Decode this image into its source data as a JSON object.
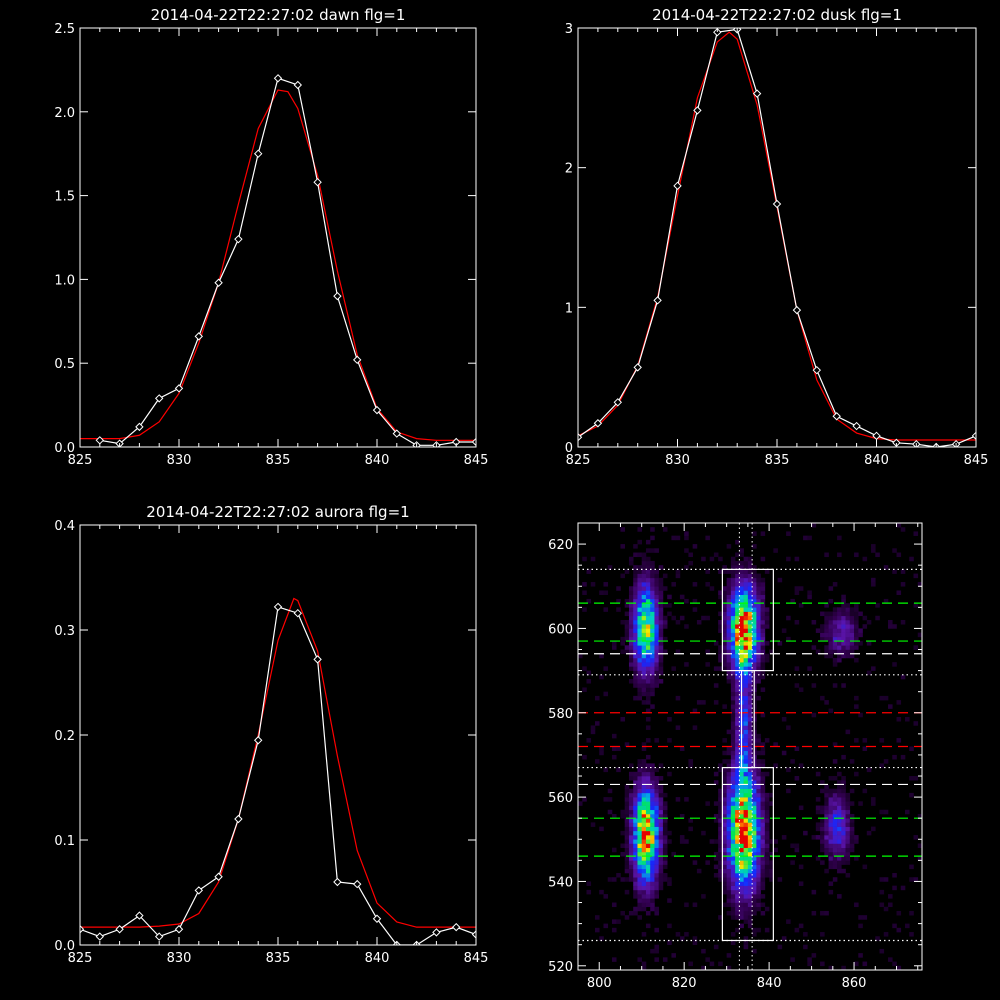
{
  "chart_data": [
    {
      "type": "line",
      "title": "2014-04-22T22:27:02 dawn flg=1",
      "xlim": [
        825,
        845
      ],
      "ylim": [
        0,
        2.5
      ],
      "xticks": [
        825,
        830,
        835,
        840,
        845
      ],
      "yticks": [
        0.0,
        0.5,
        1.0,
        1.5,
        2.0,
        2.5
      ],
      "ytick_labels": [
        "0.0",
        "0.5",
        "1.0",
        "1.5",
        "2.0",
        "2.5"
      ],
      "colors": {
        "data": "#ffffff",
        "fit": "#ff0000"
      },
      "series": [
        {
          "x": [
            826,
            827,
            828,
            829,
            830,
            831,
            832,
            833,
            834,
            835,
            836,
            837,
            838,
            839,
            840,
            841,
            842,
            843,
            844,
            845
          ],
          "y": [
            0.04,
            0.02,
            0.12,
            0.29,
            0.35,
            0.66,
            0.98,
            1.24,
            1.75,
            2.2,
            2.16,
            1.58,
            0.9,
            0.52,
            0.22,
            0.08,
            0.01,
            0.01,
            0.03,
            0.03
          ],
          "markers": "diamond"
        },
        {
          "x": [
            825,
            826,
            827,
            828,
            829,
            830,
            831,
            832,
            833,
            834,
            835,
            835.5,
            836,
            837,
            838,
            839,
            840,
            841,
            842,
            843,
            844,
            845
          ],
          "y": [
            0.05,
            0.05,
            0.05,
            0.07,
            0.15,
            0.32,
            0.62,
            0.98,
            1.45,
            1.9,
            2.13,
            2.12,
            2.02,
            1.62,
            1.05,
            0.55,
            0.23,
            0.09,
            0.05,
            0.04,
            0.04,
            0.04
          ],
          "markers": "none"
        }
      ]
    },
    {
      "type": "line",
      "title": "2014-04-22T22:27:02 dusk flg=1",
      "xlim": [
        825,
        845
      ],
      "ylim": [
        0,
        3
      ],
      "xticks": [
        825,
        830,
        835,
        840,
        845
      ],
      "yticks": [
        0,
        1,
        2,
        3
      ],
      "ytick_labels": [
        "0",
        "1",
        "2",
        "3"
      ],
      "colors": {
        "data": "#ffffff",
        "fit": "#ff0000"
      },
      "series": [
        {
          "x": [
            825,
            826,
            827,
            828,
            829,
            830,
            831,
            832,
            833,
            834,
            835,
            836,
            837,
            838,
            839,
            840,
            841,
            842,
            843,
            844,
            845
          ],
          "y": [
            0.07,
            0.17,
            0.32,
            0.57,
            1.05,
            1.87,
            2.41,
            2.97,
            2.99,
            2.53,
            1.74,
            0.98,
            0.55,
            0.22,
            0.15,
            0.08,
            0.03,
            0.02,
            0.0,
            0.02,
            0.08
          ],
          "markers": "diamond"
        },
        {
          "x": [
            825,
            826,
            827,
            828,
            829,
            830,
            831,
            832,
            832.6,
            833,
            834,
            835,
            836,
            837,
            838,
            839,
            840,
            841,
            842,
            843,
            844,
            845
          ],
          "y": [
            0.08,
            0.15,
            0.3,
            0.58,
            1.07,
            1.8,
            2.5,
            2.9,
            2.97,
            2.92,
            2.45,
            1.72,
            0.98,
            0.48,
            0.2,
            0.1,
            0.06,
            0.05,
            0.05,
            0.05,
            0.05,
            0.05
          ],
          "markers": "none"
        }
      ]
    },
    {
      "type": "line",
      "title": "2014-04-22T22:27:02 aurora flg=1",
      "xlim": [
        825,
        845
      ],
      "ylim": [
        0,
        0.4
      ],
      "xticks": [
        825,
        830,
        835,
        840,
        845
      ],
      "yticks": [
        0.0,
        0.1,
        0.2,
        0.3,
        0.4
      ],
      "ytick_labels": [
        "0.0",
        "0.1",
        "0.2",
        "0.3",
        "0.4"
      ],
      "colors": {
        "data": "#ffffff",
        "fit": "#ff0000"
      },
      "series": [
        {
          "x": [
            825,
            826,
            827,
            828,
            829,
            830,
            831,
            832,
            833,
            834,
            835,
            836,
            837,
            838,
            839,
            840,
            841,
            842,
            843,
            844,
            845
          ],
          "y": [
            0.015,
            0.008,
            0.015,
            0.028,
            0.008,
            0.015,
            0.052,
            0.065,
            0.12,
            0.195,
            0.322,
            0.316,
            0.272,
            0.06,
            0.058,
            0.025,
            0.0,
            0.0,
            0.012,
            0.017,
            0.01
          ],
          "markers": "diamond"
        },
        {
          "x": [
            825,
            826,
            827,
            828,
            829,
            830,
            831,
            832,
            833,
            834,
            835,
            835.8,
            836,
            837,
            838,
            839,
            840,
            841,
            842,
            843,
            844,
            845
          ],
          "y": [
            0.017,
            0.017,
            0.017,
            0.017,
            0.018,
            0.02,
            0.03,
            0.06,
            0.12,
            0.2,
            0.29,
            0.33,
            0.328,
            0.28,
            0.18,
            0.09,
            0.04,
            0.022,
            0.017,
            0.017,
            0.017,
            0.017
          ],
          "markers": "none"
        }
      ]
    },
    {
      "type": "heatmap",
      "xlim": [
        795,
        876
      ],
      "ylim": [
        519,
        625
      ],
      "xticks": [
        800,
        820,
        840,
        860
      ],
      "yticks": [
        520,
        540,
        560,
        580,
        600,
        620
      ],
      "blobs": [
        {
          "x": 811,
          "y": 600,
          "sx": 2.0,
          "sy": 7.0,
          "peak": 0.75
        },
        {
          "x": 834,
          "y": 600,
          "sx": 2.3,
          "sy": 6.5,
          "peak": 1.0
        },
        {
          "x": 857,
          "y": 599,
          "sx": 2.5,
          "sy": 3.5,
          "peak": 0.25
        },
        {
          "x": 811,
          "y": 551,
          "sx": 2.0,
          "sy": 7.5,
          "peak": 0.95
        },
        {
          "x": 834,
          "y": 552,
          "sx": 2.5,
          "sy": 9.0,
          "peak": 1.0
        },
        {
          "x": 856,
          "y": 553,
          "sx": 2.0,
          "sy": 5.0,
          "peak": 0.35
        },
        {
          "x": 834,
          "y": 578,
          "sx": 1.3,
          "sy": 10.0,
          "peak": 0.35
        }
      ],
      "boxes": [
        {
          "x0": 829,
          "x1": 841,
          "y0": 590,
          "y1": 614
        },
        {
          "x0": 829,
          "x1": 841,
          "y0": 526,
          "y1": 567
        },
        {
          "x0": 833.5,
          "x1": 836.5,
          "y0": 567,
          "y1": 590
        }
      ],
      "vlines_dotted": [
        833,
        836
      ],
      "hlines": [
        {
          "y": 614,
          "color": "#ffffff",
          "style": "dotted"
        },
        {
          "y": 606,
          "color": "#00ff00",
          "style": "dashed"
        },
        {
          "y": 597,
          "color": "#00ff00",
          "style": "dashed"
        },
        {
          "y": 594,
          "color": "#ffffff",
          "style": "dashed"
        },
        {
          "y": 589,
          "color": "#ffffff",
          "style": "dotted"
        },
        {
          "y": 580,
          "color": "#ff0000",
          "style": "dashed"
        },
        {
          "y": 572,
          "color": "#ff0000",
          "style": "dashed"
        },
        {
          "y": 567,
          "color": "#ffffff",
          "style": "dotted"
        },
        {
          "y": 563,
          "color": "#ffffff",
          "style": "dashed"
        },
        {
          "y": 555,
          "color": "#00ff00",
          "style": "dashed"
        },
        {
          "y": 546,
          "color": "#00ff00",
          "style": "dashed"
        },
        {
          "y": 526,
          "color": "#ffffff",
          "style": "dotted"
        }
      ]
    }
  ]
}
